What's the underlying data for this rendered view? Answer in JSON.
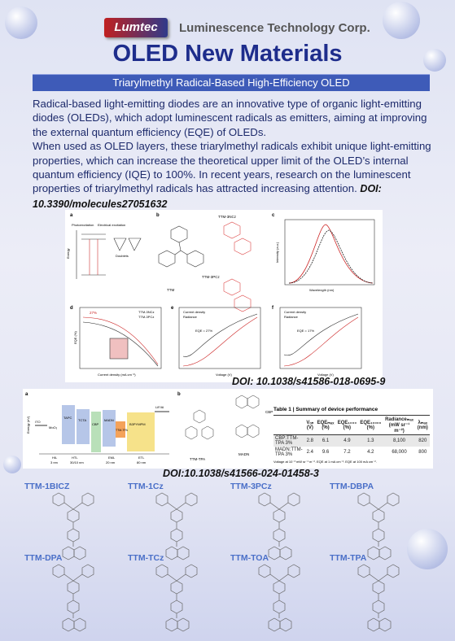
{
  "header": {
    "logo": "Lumtec",
    "company": "Luminescence Technology Corp.",
    "title": "OLED New Materials"
  },
  "banner": "Triarylmethyl Radical-Based High-Efficiency OLED",
  "paragraphs": [
    "Radical-based light-emitting diodes are an innovative type of organic light-emitting diodes (OLEDs), which adopt luminescent radicals as emitters, aiming at improving the external quantum efficiency (EQE) of OLEDs.",
    "When used as OLED layers, these triarylmethyl radicals exhibit unique light-emitting properties, which can increase the theoretical upper limit of the OLED’s internal quantum efficiency (IQE) to 100%. In recent years, research on the luminescent properties of triarylmethyl radicals has attracted increasing attention."
  ],
  "doi1": "DOI: 10.3390/molecules27051632",
  "figure1": {
    "panels": [
      "a",
      "b",
      "c",
      "d",
      "e",
      "f"
    ],
    "labels": [
      "Photoexcitation",
      "Electrical excitation",
      "Doublets",
      "TTM-3NCz",
      "TTM-3PCz",
      "TTM",
      "Energy",
      "Wavelength (nm)",
      "Intensity (a.u.)",
      "EQE (%)",
      "Current density (mA cm⁻²)",
      "Voltage (V)",
      "Current density",
      "Radiance",
      "27%",
      "EQE = 27%",
      "EQE = 17%"
    ],
    "doi": "DOI: 10.1038/s41586-018-0695-9"
  },
  "figure2": {
    "panels": [
      "a",
      "b"
    ],
    "layers": [
      "ITO",
      "MoO₃",
      "TAPC",
      "TCTA",
      "CBP",
      "MADN",
      "TTM-TPA",
      "B3PYMPM",
      "LiF/Al"
    ],
    "groups": [
      "HIL",
      "HTL",
      "EML",
      "ETL"
    ],
    "thickness": [
      "3 nm",
      "30/10 nm",
      "20 nm",
      "80 nm"
    ],
    "axis": "Energy (eV)",
    "molecules": [
      "TTM-TPA",
      "CBP",
      "MADN"
    ],
    "table": {
      "title": "Table 1 | Summary of device performance",
      "head": [
        "Vₒₙ (V)",
        "EQEₘₐₓ (%)",
        "EQE₁₀₀₀ (%)",
        "EQE₁₀₀₀₀ (%)",
        "Radianceₘₐₓ (mW sr⁻¹ m⁻²)",
        "λₘₐₓ (nm)"
      ],
      "rows": [
        [
          "CBP:TTM-TPA 3%",
          "2.8",
          "6.1",
          "4.9",
          "1.3",
          "8,100",
          "820"
        ],
        [
          "MADN:TTM-TPA 3%",
          "2.4",
          "9.6",
          "7.2",
          "4.2",
          "68,000",
          "800"
        ]
      ],
      "note": "Voltage at 10⁻³ mW sr⁻¹ m⁻². EQE at 1 mA cm⁻². EQE at 100 mA cm⁻²."
    },
    "doi": "DOI:10.1038/s41566-024-01458-3"
  },
  "molecules": [
    "TTM-1BICZ",
    "TTM-1Cz",
    "TTM-3PCz",
    "TTM-DBPA",
    "TTM-DPA",
    "TTM-TCz",
    "TTM-TOA",
    "TTM-TPA"
  ]
}
